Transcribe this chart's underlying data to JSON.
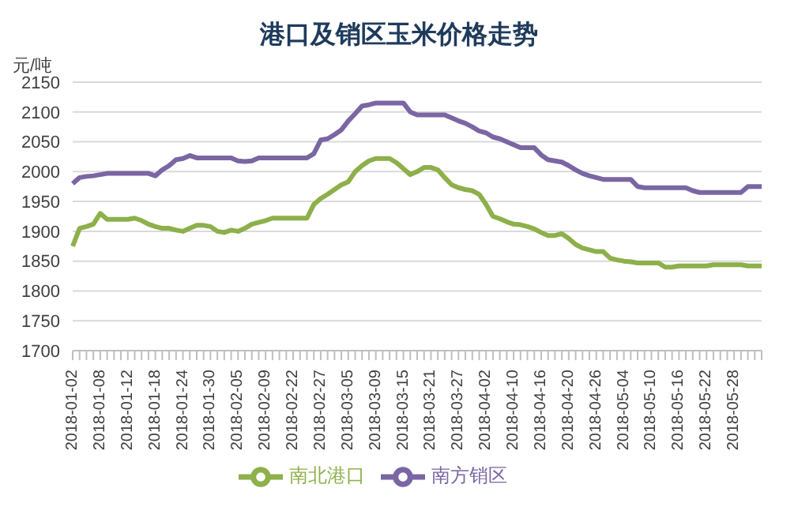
{
  "chart_data": {
    "type": "line",
    "title": "港口及销区玉米价格走势",
    "ylabel": "元/吨",
    "categories": [
      "2018-01-02",
      null,
      null,
      null,
      "2018-01-08",
      null,
      null,
      null,
      "2018-01-12",
      null,
      null,
      null,
      "2018-01-18",
      null,
      null,
      null,
      "2018-01-24",
      null,
      null,
      null,
      "2018-01-30",
      null,
      null,
      null,
      "2018-02-05",
      null,
      null,
      null,
      "2018-02-09",
      null,
      null,
      null,
      "2018-02-22",
      null,
      null,
      null,
      "2018-02-27",
      null,
      null,
      null,
      "2018-03-05",
      null,
      null,
      null,
      "2018-03-09",
      null,
      null,
      null,
      "2018-03-15",
      null,
      null,
      null,
      "2018-03-21",
      null,
      null,
      null,
      "2018-03-27",
      null,
      null,
      null,
      "2018-04-02",
      null,
      null,
      null,
      "2018-04-10",
      null,
      null,
      null,
      "2018-04-16",
      null,
      null,
      null,
      "2018-04-20",
      null,
      null,
      null,
      "2018-04-26",
      null,
      null,
      null,
      "2018-05-04",
      null,
      null,
      null,
      "2018-05-10",
      null,
      null,
      null,
      "2018-05-16",
      null,
      null,
      null,
      "2018-05-22",
      null,
      null,
      null,
      "2018-05-28",
      null,
      null,
      null,
      null
    ],
    "series": [
      {
        "name": "南北港口",
        "color": "#8db04a",
        "values": [
          1875,
          1905,
          1908,
          1912,
          1930,
          1920,
          1920,
          1920,
          1920,
          1922,
          1918,
          1912,
          1908,
          1905,
          1905,
          1902,
          1900,
          1905,
          1910,
          1910,
          1908,
          1900,
          1898,
          1902,
          1900,
          1905,
          1912,
          1915,
          1918,
          1922,
          1922,
          1922,
          1922,
          1922,
          1922,
          1945,
          1955,
          1962,
          1970,
          1978,
          1983,
          2000,
          2010,
          2018,
          2022,
          2022,
          2022,
          2015,
          2005,
          1995,
          2000,
          2007,
          2007,
          2003,
          1990,
          1978,
          1973,
          1970,
          1968,
          1962,
          1945,
          1925,
          1921,
          1916,
          1912,
          1911,
          1908,
          1904,
          1898,
          1893,
          1893,
          1896,
          1888,
          1878,
          1872,
          1869,
          1866,
          1866,
          1855,
          1852,
          1850,
          1849,
          1847,
          1847,
          1847,
          1847,
          1840,
          1840,
          1842,
          1842,
          1842,
          1842,
          1842,
          1844,
          1844,
          1844,
          1844,
          1844,
          1842,
          1842,
          1842
        ]
      },
      {
        "name": "南方销区",
        "color": "#7a66a3",
        "values": [
          1980,
          1990,
          1992,
          1993,
          1995,
          1997,
          1997,
          1997,
          1997,
          1997,
          1997,
          1997,
          1993,
          2003,
          2010,
          2020,
          2022,
          2027,
          2023,
          2023,
          2023,
          2023,
          2023,
          2023,
          2018,
          2017,
          2018,
          2023,
          2023,
          2023,
          2023,
          2023,
          2023,
          2023,
          2023,
          2030,
          2053,
          2055,
          2062,
          2070,
          2085,
          2097,
          2110,
          2112,
          2115,
          2115,
          2115,
          2115,
          2115,
          2100,
          2095,
          2095,
          2095,
          2095,
          2095,
          2090,
          2085,
          2081,
          2075,
          2068,
          2065,
          2058,
          2055,
          2050,
          2045,
          2040,
          2040,
          2040,
          2028,
          2020,
          2018,
          2016,
          2010,
          2003,
          1997,
          1993,
          1990,
          1987,
          1987,
          1987,
          1987,
          1987,
          1975,
          1973,
          1973,
          1973,
          1973,
          1973,
          1973,
          1973,
          1968,
          1965,
          1965,
          1965,
          1965,
          1965,
          1965,
          1965,
          1975,
          1975,
          1975
        ]
      }
    ],
    "ylim": [
      1700,
      2150
    ],
    "yticks": [
      1700,
      1750,
      1800,
      1850,
      1900,
      1950,
      2000,
      2050,
      2100,
      2150
    ],
    "grid": "y",
    "legend": "bottom",
    "marker": "none"
  }
}
